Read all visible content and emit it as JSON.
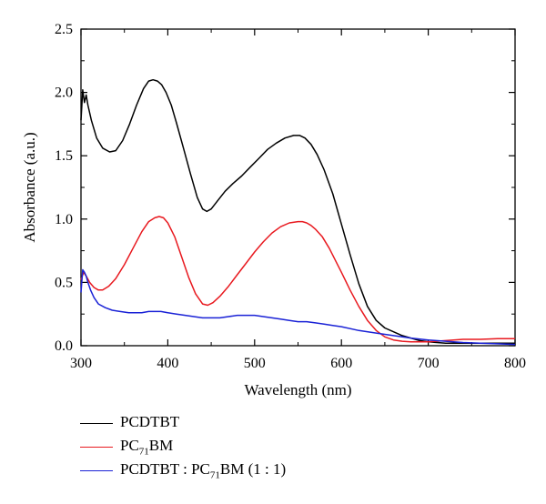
{
  "chart_data": {
    "type": "line",
    "xlabel": "Wavelength (nm)",
    "ylabel": "Absorbance (a.u.)",
    "xlim": [
      300,
      800
    ],
    "ylim": [
      0,
      2.5
    ],
    "x_ticks": [
      "300",
      "400",
      "500",
      "600",
      "700",
      "800"
    ],
    "y_ticks": [
      "0.0",
      "0.5",
      "1.0",
      "1.5",
      "2.0",
      "2.5"
    ],
    "grid": false,
    "legend_position": "below",
    "series": [
      {
        "name": "PCDTBT",
        "color": "#000000",
        "x": [
          300,
          302,
          304,
          306,
          308,
          312,
          318,
          325,
          333,
          340,
          348,
          356,
          364,
          372,
          378,
          383,
          388,
          393,
          398,
          404,
          410,
          418,
          426,
          434,
          440,
          445,
          450,
          458,
          466,
          475,
          485,
          495,
          505,
          515,
          525,
          535,
          545,
          552,
          558,
          565,
          572,
          580,
          590,
          600,
          610,
          620,
          630,
          640,
          650,
          660,
          670,
          680,
          690,
          700,
          710,
          720,
          740,
          760,
          780,
          800
        ],
        "y": [
          1.78,
          2.02,
          1.92,
          1.98,
          1.9,
          1.78,
          1.64,
          1.56,
          1.53,
          1.54,
          1.62,
          1.75,
          1.9,
          2.03,
          2.09,
          2.1,
          2.09,
          2.06,
          2.0,
          1.9,
          1.76,
          1.56,
          1.36,
          1.17,
          1.08,
          1.06,
          1.08,
          1.15,
          1.22,
          1.28,
          1.34,
          1.41,
          1.48,
          1.55,
          1.6,
          1.64,
          1.66,
          1.66,
          1.64,
          1.59,
          1.51,
          1.39,
          1.2,
          0.96,
          0.72,
          0.49,
          0.31,
          0.2,
          0.14,
          0.11,
          0.08,
          0.06,
          0.04,
          0.03,
          0.025,
          0.02,
          0.02,
          0.02,
          0.02,
          0.02
        ]
      },
      {
        "name": "PC71BM",
        "color": "#e8191f",
        "x": [
          300,
          303,
          306,
          310,
          315,
          320,
          325,
          332,
          340,
          350,
          360,
          370,
          378,
          385,
          390,
          395,
          400,
          408,
          416,
          424,
          432,
          440,
          446,
          452,
          460,
          470,
          480,
          490,
          500,
          510,
          520,
          530,
          540,
          550,
          555,
          560,
          565,
          570,
          578,
          586,
          594,
          600,
          610,
          620,
          630,
          640,
          650,
          660,
          670,
          680,
          700,
          720,
          740,
          760,
          780,
          800
        ],
        "y": [
          0.52,
          0.58,
          0.55,
          0.5,
          0.46,
          0.44,
          0.44,
          0.47,
          0.53,
          0.64,
          0.77,
          0.9,
          0.98,
          1.01,
          1.02,
          1.01,
          0.97,
          0.86,
          0.7,
          0.54,
          0.41,
          0.33,
          0.32,
          0.34,
          0.39,
          0.47,
          0.56,
          0.65,
          0.74,
          0.82,
          0.89,
          0.94,
          0.97,
          0.98,
          0.98,
          0.97,
          0.95,
          0.92,
          0.86,
          0.77,
          0.66,
          0.58,
          0.44,
          0.31,
          0.2,
          0.12,
          0.07,
          0.045,
          0.035,
          0.03,
          0.03,
          0.04,
          0.05,
          0.05,
          0.055,
          0.055
        ]
      },
      {
        "name": "PCDTBT:PC71BM (1:1)",
        "color": "#1a22d6",
        "x": [
          300,
          302,
          304,
          306,
          308,
          311,
          315,
          320,
          328,
          336,
          345,
          355,
          362,
          370,
          378,
          385,
          392,
          400,
          410,
          420,
          430,
          440,
          450,
          460,
          470,
          480,
          490,
          500,
          510,
          520,
          530,
          540,
          550,
          560,
          570,
          580,
          590,
          600,
          620,
          640,
          660,
          680,
          700,
          720,
          740,
          760,
          780,
          800
        ],
        "y": [
          0.42,
          0.6,
          0.58,
          0.55,
          0.5,
          0.44,
          0.38,
          0.33,
          0.3,
          0.28,
          0.27,
          0.26,
          0.26,
          0.26,
          0.27,
          0.27,
          0.27,
          0.26,
          0.25,
          0.24,
          0.23,
          0.22,
          0.22,
          0.22,
          0.23,
          0.24,
          0.24,
          0.24,
          0.23,
          0.22,
          0.21,
          0.2,
          0.19,
          0.19,
          0.18,
          0.17,
          0.16,
          0.15,
          0.12,
          0.1,
          0.08,
          0.06,
          0.045,
          0.035,
          0.025,
          0.02,
          0.015,
          0.01
        ]
      }
    ]
  },
  "legend": {
    "items": [
      {
        "main": "PCDTBT",
        "sub": "",
        "tail": ""
      },
      {
        "main": "PC",
        "sub": "71",
        "tail": "BM"
      },
      {
        "main": "PCDTBT : PC",
        "sub": "71",
        "tail": "BM (1 : 1)"
      }
    ]
  }
}
